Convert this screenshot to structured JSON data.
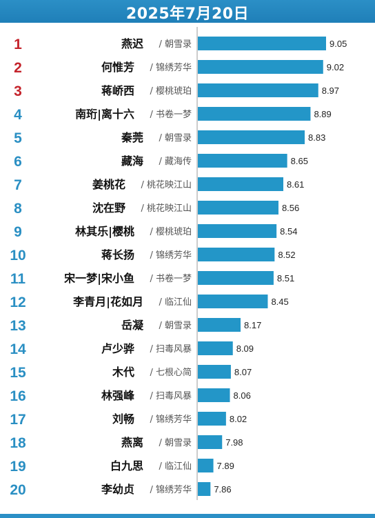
{
  "header": {
    "title": "2025年7月20日"
  },
  "colors": {
    "bar": "#2396c8",
    "rank_top3": "#c4232b",
    "rank_other": "#2a8fc3",
    "name": "#111111",
    "drama": "#555555",
    "axis": "#999999",
    "header_bg": "#2388c0"
  },
  "chart_data": {
    "type": "bar",
    "orientation": "horizontal",
    "title": "2025年7月20日",
    "xlabel": "",
    "ylabel": "",
    "xlim": [
      7.73,
      9.15
    ],
    "grid": false,
    "ranks": [
      "1",
      "2",
      "3",
      "4",
      "5",
      "6",
      "7",
      "8",
      "9",
      "10",
      "11",
      "12",
      "13",
      "14",
      "15",
      "16",
      "17",
      "18",
      "19",
      "20"
    ],
    "categories": [
      "燕迟",
      "何惟芳",
      "蒋峤西",
      "南珩|离十六",
      "秦莞",
      "藏海",
      "姜桃花",
      "沈在野",
      "林其乐|樱桃",
      "蒋长扬",
      "宋一梦|宋小鱼",
      "李青月|花如月",
      "岳凝",
      "卢少骅",
      "木代",
      "林强峰",
      "刘畅",
      "燕离",
      "白九思",
      "李幼贞"
    ],
    "dramas": [
      "/ 朝雪录",
      "/ 锦绣芳华",
      "/ 樱桃琥珀",
      "/ 书卷一梦",
      "/ 朝雪录",
      "/ 藏海传",
      "/ 桃花映江山",
      "/ 桃花映江山",
      "/ 樱桃琥珀",
      "/ 锦绣芳华",
      "/ 书卷一梦",
      "/ 临江仙",
      "/ 朝雪录",
      "/ 扫毒风暴",
      "/ 七根心简",
      "/ 扫毒风暴",
      "/ 锦绣芳华",
      "/ 朝雪录",
      "/ 临江仙",
      "/ 锦绣芳华"
    ],
    "values": [
      9.05,
      9.02,
      8.97,
      8.89,
      8.83,
      8.65,
      8.61,
      8.56,
      8.54,
      8.52,
      8.51,
      8.45,
      8.17,
      8.09,
      8.07,
      8.06,
      8.02,
      7.98,
      7.89,
      7.86
    ],
    "value_labels": [
      "9.05",
      "9.02",
      "8.97",
      "8.89",
      "8.83",
      "8.65",
      "8.61",
      "8.56",
      "8.54",
      "8.52",
      "8.51",
      "8.45",
      "8.17",
      "8.09",
      "8.07",
      "8.06",
      "8.02",
      "7.98",
      "7.89",
      "7.86"
    ]
  }
}
